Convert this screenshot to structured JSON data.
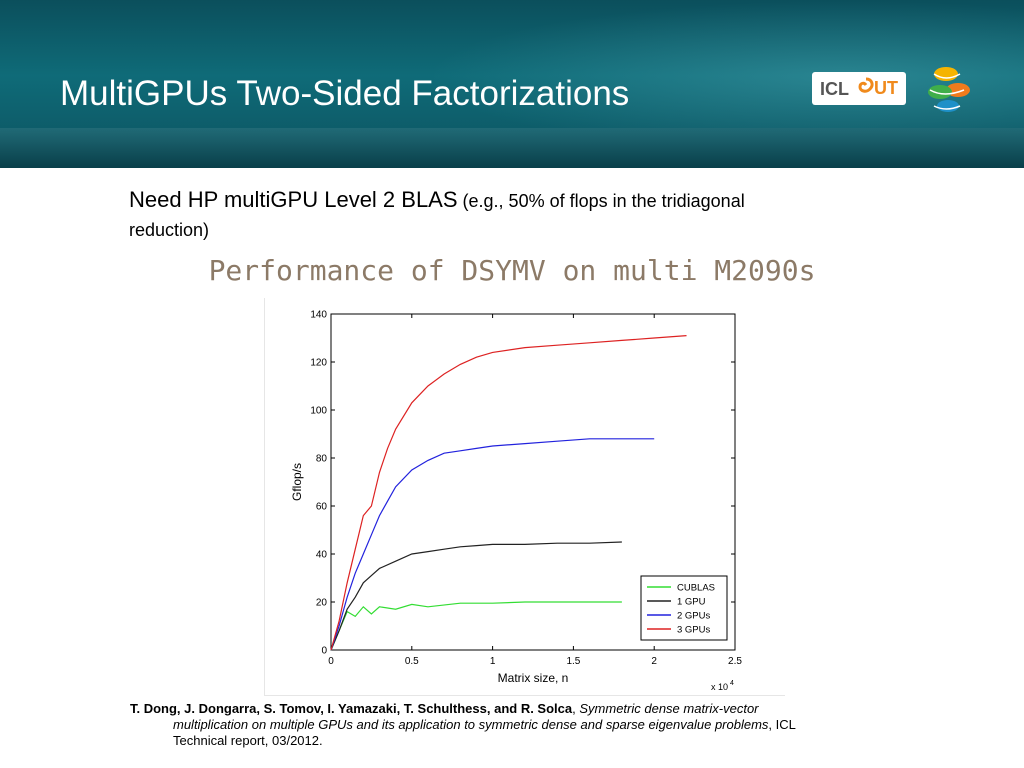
{
  "slide": {
    "title": "MultiGPUs Two-Sided Factorizations",
    "logos": {
      "left_text_1": "ICL",
      "left_text_2": "UT"
    },
    "bullet": {
      "main": "Need HP multiGPU Level 2 BLAS",
      "detail_1": " (e.g., 50% of flops in the tridiagonal",
      "detail_2": "reduction)"
    },
    "subtitle": "Performance of DSYMV on multi M2090s",
    "reference": {
      "authors": "T. Dong, J. Dongarra, S. Tomov, I. Yamazaki, T. Schulthess, and R. Solca",
      "sep": ", ",
      "title_1": "Symmetric dense matrix-vector",
      "title_2": "multiplication on multiple GPUs and its application to symmetric dense and sparse eigenvalue problems",
      "tail_1": ", ICL",
      "tail_2": "Technical report, 03/2012."
    }
  },
  "colors": {
    "header": "#0f6b78",
    "subtitle": "#8c7a67",
    "cublas": "#33dd33",
    "gpu1": "#222222",
    "gpu2": "#2222dd",
    "gpu3": "#dd2222"
  },
  "chart_data": {
    "type": "line",
    "xlabel": "Matrix size, n",
    "ylabel": "Gflop/s",
    "x_multiplier_label": "x 10",
    "x_multiplier_exp": "4",
    "xlim": [
      0,
      2.5
    ],
    "ylim": [
      0,
      140
    ],
    "xticks": [
      "0",
      "0.5",
      "1",
      "1.5",
      "2",
      "2.5"
    ],
    "yticks": [
      "0",
      "20",
      "40",
      "60",
      "80",
      "100",
      "120",
      "140"
    ],
    "legend_position": "bottom-right",
    "series": [
      {
        "name": "CUBLAS",
        "color": "#33dd33",
        "x": [
          0,
          0.05,
          0.1,
          0.15,
          0.2,
          0.25,
          0.3,
          0.4,
          0.5,
          0.6,
          0.8,
          1.0,
          1.2,
          1.4,
          1.6,
          1.8
        ],
        "y": [
          0,
          8,
          16,
          14,
          18,
          15,
          18,
          17,
          19,
          18,
          19.5,
          19.5,
          20,
          20,
          20,
          20
        ]
      },
      {
        "name": "1 GPU",
        "color": "#222222",
        "x": [
          0,
          0.05,
          0.1,
          0.15,
          0.2,
          0.25,
          0.3,
          0.4,
          0.5,
          0.6,
          0.7,
          0.8,
          0.9,
          1.0,
          1.2,
          1.4,
          1.6,
          1.8
        ],
        "y": [
          0,
          8,
          17,
          22,
          28,
          31,
          34,
          37,
          40,
          41,
          42,
          43,
          43.5,
          44,
          44,
          44.5,
          44.5,
          45
        ]
      },
      {
        "name": "2 GPUs",
        "color": "#2222dd",
        "x": [
          0,
          0.05,
          0.1,
          0.15,
          0.2,
          0.25,
          0.3,
          0.35,
          0.4,
          0.5,
          0.6,
          0.7,
          0.8,
          0.9,
          1.0,
          1.2,
          1.4,
          1.6,
          1.8,
          2.0
        ],
        "y": [
          0,
          10,
          22,
          32,
          40,
          48,
          56,
          62,
          68,
          75,
          79,
          82,
          83,
          84,
          85,
          86,
          87,
          88,
          88,
          88
        ]
      },
      {
        "name": "3 GPUs",
        "color": "#dd2222",
        "x": [
          0,
          0.05,
          0.1,
          0.15,
          0.2,
          0.25,
          0.3,
          0.35,
          0.4,
          0.5,
          0.6,
          0.7,
          0.8,
          0.9,
          1.0,
          1.2,
          1.4,
          1.6,
          1.8,
          2.0,
          2.2
        ],
        "y": [
          0,
          12,
          28,
          42,
          56,
          60,
          74,
          84,
          92,
          103,
          110,
          115,
          119,
          122,
          124,
          126,
          127,
          128,
          129,
          130,
          131
        ]
      }
    ]
  }
}
